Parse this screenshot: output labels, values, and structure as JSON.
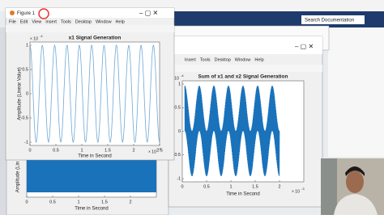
{
  "matlab": {
    "search": "Search Documentation"
  },
  "figure1": {
    "title": "Figure 1",
    "menu": [
      "File",
      "Edit",
      "View",
      "Insert",
      "Tools",
      "Desktop",
      "Window",
      "Help"
    ],
    "plot": {
      "title": "x1 Signal Generation",
      "ylabel": "Amplitude (Linear Value)",
      "xlabel": "Time in Second",
      "x_multiplier": "× 10",
      "x_exponent": "-3",
      "y_multiplier": "× 10",
      "y_exponent": "-4",
      "xticks": [
        "0",
        "0.5",
        "1",
        "1.5",
        "2",
        "2.5"
      ],
      "yticks": [
        "1",
        "0.5",
        "0",
        "-0.5",
        "-1"
      ]
    }
  },
  "figure2": {
    "menu": [
      "Insert",
      "Tools",
      "Desktop",
      "Window",
      "Help"
    ],
    "plot": {
      "title": "Sum of x1 and x2 Signal Generation",
      "xlabel": "Time in Second",
      "x_multiplier": "× 10",
      "x_exponent": "-3",
      "y_multiplier": "× 10",
      "y_exponent": "-4",
      "xticks": [
        "0",
        "0.5",
        "1",
        "1.5",
        "2"
      ],
      "yticks": [
        "1",
        "0.5",
        "0",
        "-0.5",
        "-1"
      ]
    }
  },
  "figure3": {
    "plot": {
      "ylabel": "Amplitude (Lin",
      "xlabel": "Time in Second",
      "xticks": [
        "0",
        "0.5",
        "1",
        "1.5",
        "2"
      ]
    }
  }
}
